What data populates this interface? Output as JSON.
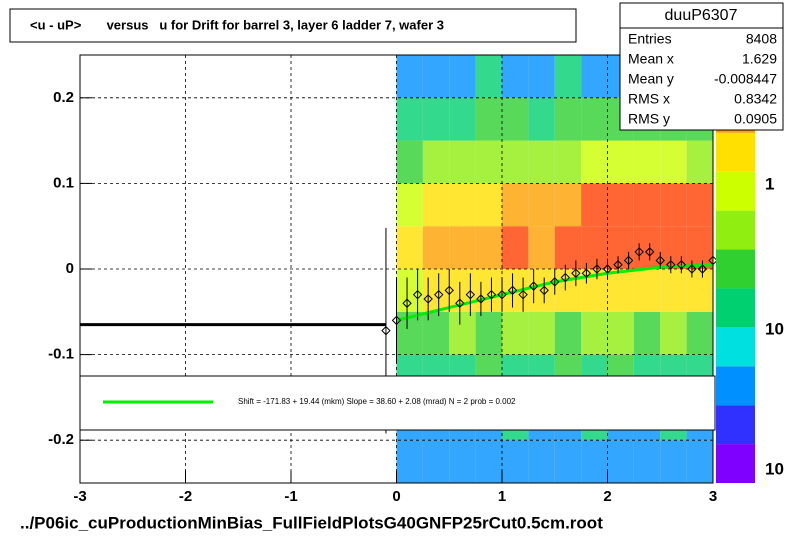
{
  "chart_data": {
    "type": "profile2d",
    "title": "<u - uP>       versus   u for Drift for barrel 3, layer 6 ladder 7, wafer 3",
    "footer": "../P06ic_cuProductionMinBias_FullFieldPlotsG40GNFP25rCut0.5cm.root",
    "xlim": [
      -3,
      3
    ],
    "ylim": [
      -0.25,
      0.25
    ],
    "xticks": [
      -3,
      -2,
      -1,
      0,
      1,
      2,
      3
    ],
    "yticks": [
      -0.2,
      -0.1,
      0,
      0.1,
      0.2
    ],
    "grid": true,
    "stats": {
      "name": "duuP6307",
      "rows": [
        {
          "label": "Entries",
          "value": 8408
        },
        {
          "label": "Mean x",
          "value": 1.629
        },
        {
          "label": "Mean y",
          "value": -0.008447
        },
        {
          "label": "RMS x",
          "value": 0.8342
        },
        {
          "label": "RMS y",
          "value": 0.0905
        }
      ]
    },
    "colorbar_labels": [
      "1",
      "10",
      "10"
    ],
    "heatmap": {
      "xbins": [
        0,
        0.25,
        0.5,
        0.75,
        1,
        1.25,
        1.5,
        1.75,
        2,
        2.25,
        2.5,
        2.75,
        3
      ],
      "ybins": [
        -0.25,
        -0.2,
        -0.15,
        -0.1,
        -0.05,
        0,
        0.05,
        0.1,
        0.15,
        0.2,
        0.25
      ],
      "z": [
        [
          1,
          1,
          1,
          1,
          1,
          1,
          1,
          1,
          1,
          1,
          1,
          1
        ],
        [
          1,
          1,
          1,
          1,
          2,
          1,
          1,
          2,
          1,
          1,
          2,
          1
        ],
        [
          2,
          2,
          2,
          3,
          2,
          2,
          3,
          2,
          3,
          2,
          2,
          2
        ],
        [
          3,
          3,
          4,
          3,
          4,
          4,
          3,
          4,
          4,
          3,
          4,
          3
        ],
        [
          6,
          7,
          7,
          8,
          7,
          8,
          8,
          7,
          8,
          7,
          8,
          7
        ],
        [
          9,
          10,
          12,
          12,
          13,
          12,
          14,
          13,
          14,
          15,
          14,
          13
        ],
        [
          6,
          7,
          8,
          9,
          10,
          11,
          12,
          13,
          14,
          15,
          16,
          15
        ],
        [
          3,
          4,
          4,
          4,
          5,
          5,
          5,
          6,
          6,
          6,
          6,
          5
        ],
        [
          2,
          2,
          2,
          3,
          3,
          2,
          3,
          3,
          3,
          3,
          3,
          3
        ],
        [
          1,
          1,
          1,
          2,
          1,
          1,
          2,
          1,
          1,
          1,
          2,
          1
        ]
      ]
    },
    "profile": {
      "color": "#000000",
      "x": [
        -0.1,
        0,
        0.1,
        0.2,
        0.3,
        0.4,
        0.5,
        0.6,
        0.7,
        0.8,
        0.9,
        1,
        1.1,
        1.2,
        1.3,
        1.4,
        1.5,
        1.6,
        1.7,
        1.8,
        1.9,
        2,
        2.1,
        2.2,
        2.3,
        2.4,
        2.5,
        2.6,
        2.7,
        2.8,
        2.9,
        3
      ],
      "values": [
        -0.072,
        -0.06,
        -0.04,
        -0.03,
        -0.035,
        -0.03,
        -0.025,
        -0.04,
        -0.03,
        -0.035,
        -0.03,
        -0.03,
        -0.025,
        -0.03,
        -0.02,
        -0.025,
        -0.015,
        -0.01,
        -0.005,
        -0.005,
        0,
        0,
        0.005,
        0.01,
        0.02,
        0.02,
        0.01,
        0.005,
        0.005,
        0,
        0,
        0.01
      ],
      "errors": [
        0.12,
        0.05,
        0.03,
        0.03,
        0.025,
        0.025,
        0.025,
        0.025,
        0.025,
        0.02,
        0.02,
        0.02,
        0.02,
        0.02,
        0.02,
        0.015,
        0.015,
        0.015,
        0.015,
        0.012,
        0.012,
        0.012,
        0.01,
        0.01,
        0.01,
        0.01,
        0.01,
        0.01,
        0.01,
        0.01,
        0.01,
        0.01
      ]
    },
    "fits": [
      {
        "color": "#000000",
        "x": [
          -3,
          -0.1
        ],
        "values": [
          -0.065,
          -0.065
        ]
      },
      {
        "color": "#00ee00",
        "x": [
          0,
          0.5,
          1,
          1.5,
          2,
          2.5,
          3
        ],
        "values": [
          -0.06,
          -0.045,
          -0.03,
          -0.015,
          -0.005,
          0.002,
          0.005
        ]
      }
    ],
    "legend_text": "Shift =  -171.83 + 19.44 (mkm) Slope =    38.60 + 2.08 (mrad)  N = 2 prob = 0.002"
  }
}
